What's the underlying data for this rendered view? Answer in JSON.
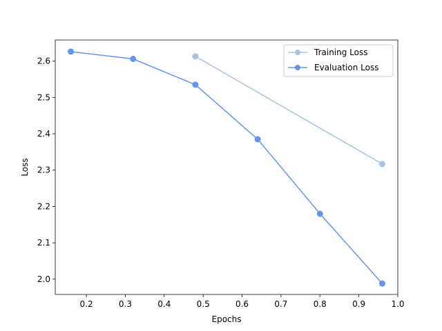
{
  "chart_data": {
    "type": "line",
    "title": "",
    "xlabel": "Epochs",
    "ylabel": "Loss",
    "xlim": [
      0.12,
      1.0
    ],
    "ylim": [
      1.958,
      2.658
    ],
    "xticks": [
      0.2,
      0.3,
      0.4,
      0.5,
      0.6,
      0.7,
      0.8,
      0.9,
      1.0
    ],
    "xtick_labels": [
      "0.2",
      "0.3",
      "0.4",
      "0.5",
      "0.6",
      "0.7",
      "0.8",
      "0.9",
      "1.0"
    ],
    "yticks": [
      2.0,
      2.1,
      2.2,
      2.3,
      2.4,
      2.5,
      2.6
    ],
    "ytick_labels": [
      "2.0",
      "2.1",
      "2.2",
      "2.3",
      "2.4",
      "2.5",
      "2.6"
    ],
    "grid": false,
    "legend_position": "top-right",
    "series": [
      {
        "name": "Training Loss",
        "color": "#a7c4e0",
        "marker": "circle",
        "x": [
          0.48,
          0.96
        ],
        "y": [
          2.613,
          2.317
        ]
      },
      {
        "name": "Evaluation Loss",
        "color": "#6495ed",
        "marker": "circle",
        "x": [
          0.16,
          0.32,
          0.48,
          0.64,
          0.8,
          0.96
        ],
        "y": [
          2.626,
          2.606,
          2.535,
          2.385,
          2.18,
          1.988
        ]
      }
    ]
  }
}
